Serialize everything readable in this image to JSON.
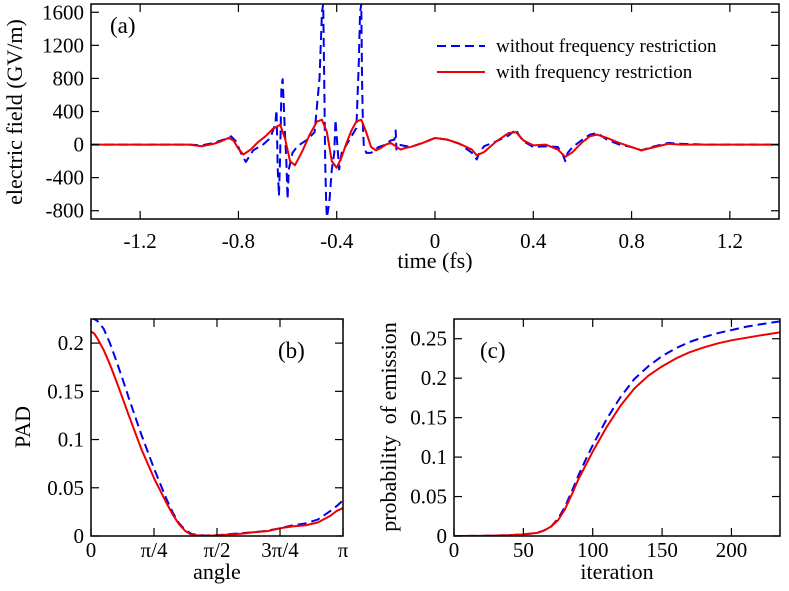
{
  "chart_data": [
    {
      "id": "a",
      "type": "line",
      "panel_label": "(a)",
      "xlabel": "time (fs)",
      "ylabel": "electric field (GV/m)",
      "xlim": [
        -1.4,
        1.4
      ],
      "ylim": [
        -900,
        1700
      ],
      "xticks": [
        -1.2,
        -0.8,
        -0.4,
        0,
        0.4,
        0.8,
        1.2
      ],
      "xtick_labels": [
        "-1.2",
        "-0.8",
        "-0.4",
        "0",
        "0.4",
        "0.8",
        "1.2"
      ],
      "yticks": [
        -800,
        -400,
        0,
        400,
        800,
        1200,
        1600
      ],
      "ytick_labels": [
        "-800",
        "-400",
        "0",
        "400",
        "800",
        "1200",
        "1600"
      ],
      "legend": {
        "position": "top-right"
      },
      "series": [
        {
          "name": "without frequency restriction",
          "color": "#0000ee",
          "dash": "dashed",
          "x": [
            -1.4,
            -1.0,
            -0.95,
            -0.9,
            -0.86,
            -0.83,
            -0.81,
            -0.79,
            -0.77,
            -0.74,
            -0.7,
            -0.67,
            -0.65,
            -0.645,
            -0.64,
            -0.635,
            -0.63,
            -0.625,
            -0.62,
            -0.61,
            -0.605,
            -0.6,
            -0.595,
            -0.58,
            -0.56,
            -0.52,
            -0.49,
            -0.47,
            -0.46,
            -0.455,
            -0.45,
            -0.447,
            -0.443,
            -0.44,
            -0.43,
            -0.42,
            -0.41,
            -0.405,
            -0.4,
            -0.395,
            -0.39,
            -0.38,
            -0.35,
            -0.32,
            -0.31,
            -0.305,
            -0.3,
            -0.297,
            -0.293,
            -0.29,
            -0.28,
            -0.26,
            -0.23,
            -0.2,
            -0.18,
            -0.165,
            -0.16,
            -0.157,
            -0.155,
            -0.15,
            -0.1,
            -0.05,
            0,
            0.05,
            0.1,
            0.15,
            0.17,
            0.18,
            0.2,
            0.25,
            0.3,
            0.32,
            0.33,
            0.34,
            0.36,
            0.4,
            0.45,
            0.5,
            0.52,
            0.53,
            0.54,
            0.56,
            0.6,
            0.63,
            0.66,
            0.7,
            0.75,
            0.8,
            0.84,
            0.88,
            0.95,
            1.0,
            1.1,
            1.2,
            1.4
          ],
          "y": [
            0,
            0,
            -10,
            20,
            60,
            100,
            40,
            -100,
            -210,
            -70,
            0,
            80,
            250,
            420,
            -300,
            -620,
            -100,
            700,
            790,
            100,
            -200,
            -660,
            -300,
            -100,
            -20,
            60,
            150,
            800,
            1600,
            1700,
            600,
            -200,
            -700,
            -880,
            -700,
            -300,
            -100,
            300,
            100,
            -100,
            -300,
            -100,
            50,
            200,
            1000,
            1600,
            1700,
            800,
            200,
            0,
            -100,
            -100,
            -30,
            0,
            50,
            60,
            170,
            -60,
            -10,
            0,
            -30,
            20,
            80,
            60,
            10,
            -100,
            -180,
            -100,
            -20,
            40,
            110,
            160,
            185,
            120,
            40,
            -30,
            -20,
            -30,
            -120,
            -200,
            -100,
            -30,
            60,
            120,
            140,
            60,
            0,
            -30,
            -70,
            -30,
            20,
            10,
            0,
            0,
            0
          ]
        },
        {
          "name": "with frequency restriction",
          "color": "#ee0000",
          "dash": "solid",
          "x": [
            -1.4,
            -1.0,
            -0.95,
            -0.9,
            -0.87,
            -0.84,
            -0.82,
            -0.8,
            -0.78,
            -0.75,
            -0.72,
            -0.69,
            -0.66,
            -0.63,
            -0.61,
            -0.59,
            -0.57,
            -0.54,
            -0.51,
            -0.48,
            -0.46,
            -0.44,
            -0.42,
            -0.4,
            -0.38,
            -0.36,
            -0.34,
            -0.32,
            -0.3,
            -0.28,
            -0.26,
            -0.24,
            -0.22,
            -0.2,
            -0.18,
            -0.16,
            -0.14,
            -0.12,
            -0.1,
            -0.05,
            0,
            0.05,
            0.1,
            0.15,
            0.17,
            0.2,
            0.25,
            0.3,
            0.33,
            0.36,
            0.4,
            0.45,
            0.5,
            0.53,
            0.56,
            0.6,
            0.63,
            0.66,
            0.7,
            0.75,
            0.8,
            0.84,
            0.88,
            0.95,
            1.0,
            1.1,
            1.2,
            1.4
          ],
          "y": [
            0,
            0,
            -20,
            10,
            40,
            80,
            50,
            -50,
            -120,
            -60,
            30,
            100,
            190,
            240,
            70,
            -200,
            -250,
            -80,
            120,
            280,
            300,
            150,
            -200,
            -280,
            -150,
            20,
            170,
            280,
            300,
            150,
            -30,
            -70,
            -40,
            0,
            20,
            -20,
            -60,
            -40,
            -30,
            20,
            80,
            60,
            10,
            -60,
            -130,
            -90,
            40,
            140,
            150,
            50,
            -10,
            0,
            -60,
            -150,
            -90,
            30,
            100,
            120,
            80,
            20,
            -30,
            -70,
            -40,
            10,
            0,
            0,
            0,
            0
          ]
        }
      ]
    },
    {
      "id": "b",
      "type": "line",
      "panel_label": "(b)",
      "xlabel": "angle",
      "ylabel": "PAD",
      "xlim": [
        0,
        4
      ],
      "ylim": [
        0,
        0.225
      ],
      "xticks": [
        0,
        1,
        2,
        3,
        4
      ],
      "xtick_labels": [
        "0",
        "π/4",
        "π/2",
        "3π/4",
        "π"
      ],
      "yticks": [
        0,
        0.05,
        0.1,
        0.15,
        0.2
      ],
      "ytick_labels": [
        "0",
        "0.05",
        "0.1",
        "0.15",
        "0.2"
      ],
      "series": [
        {
          "name": "without frequency restriction",
          "color": "#0000ee",
          "dash": "dashed",
          "x": [
            0,
            0.1,
            0.2,
            0.3,
            0.4,
            0.5,
            0.6,
            0.8,
            1.0,
            1.2,
            1.3,
            1.4,
            1.5,
            1.6,
            1.8,
            2.0,
            2.2,
            2.4,
            2.6,
            2.8,
            3.0,
            3.2,
            3.4,
            3.6,
            3.8,
            3.9,
            4.0
          ],
          "y": [
            0.227,
            0.223,
            0.215,
            0.2,
            0.182,
            0.163,
            0.143,
            0.105,
            0.07,
            0.038,
            0.024,
            0.013,
            0.006,
            0.002,
            0.0005,
            0.0008,
            0.002,
            0.003,
            0.004,
            0.0055,
            0.008,
            0.011,
            0.013,
            0.017,
            0.026,
            0.031,
            0.037
          ]
        },
        {
          "name": "with frequency restriction",
          "color": "#ee0000",
          "dash": "solid",
          "x": [
            0,
            0.05,
            0.1,
            0.2,
            0.3,
            0.4,
            0.5,
            0.6,
            0.8,
            1.0,
            1.2,
            1.3,
            1.4,
            1.5,
            1.6,
            1.8,
            2.0,
            2.2,
            2.4,
            2.6,
            2.8,
            3.0,
            3.2,
            3.4,
            3.6,
            3.8,
            3.9,
            4.0
          ],
          "y": [
            0.212,
            0.21,
            0.205,
            0.193,
            0.178,
            0.161,
            0.143,
            0.125,
            0.09,
            0.06,
            0.034,
            0.022,
            0.012,
            0.005,
            0.001,
            0.0003,
            0.0007,
            0.0015,
            0.0025,
            0.004,
            0.005,
            0.008,
            0.01,
            0.011,
            0.014,
            0.021,
            0.026,
            0.029
          ]
        }
      ]
    },
    {
      "id": "c",
      "type": "line",
      "panel_label": "(c)",
      "xlabel": "iteration",
      "ylabel": "probability  of emission",
      "xlim": [
        0,
        235
      ],
      "ylim": [
        0,
        0.275
      ],
      "xticks": [
        0,
        50,
        100,
        150,
        200
      ],
      "xtick_labels": [
        "0",
        "50",
        "100",
        "150",
        "200"
      ],
      "yticks": [
        0,
        0.05,
        0.1,
        0.15,
        0.2,
        0.25
      ],
      "ytick_labels": [
        "0",
        "0.05",
        "0.1",
        "0.15",
        "0.2",
        "0.25"
      ],
      "series": [
        {
          "name": "without frequency restriction",
          "color": "#0000ee",
          "dash": "dashed",
          "x": [
            0,
            20,
            40,
            50,
            60,
            65,
            70,
            75,
            80,
            85,
            90,
            95,
            100,
            110,
            120,
            130,
            140,
            150,
            160,
            170,
            180,
            190,
            200,
            210,
            220,
            235
          ],
          "y": [
            0,
            0.0002,
            0.001,
            0.002,
            0.004,
            0.007,
            0.012,
            0.022,
            0.037,
            0.057,
            0.078,
            0.097,
            0.115,
            0.148,
            0.176,
            0.199,
            0.215,
            0.228,
            0.238,
            0.246,
            0.252,
            0.257,
            0.261,
            0.265,
            0.268,
            0.272
          ]
        },
        {
          "name": "with frequency restriction",
          "color": "#ee0000",
          "dash": "solid",
          "x": [
            0,
            20,
            40,
            50,
            60,
            65,
            70,
            75,
            80,
            85,
            90,
            95,
            100,
            110,
            120,
            130,
            140,
            150,
            160,
            170,
            180,
            190,
            200,
            210,
            220,
            235
          ],
          "y": [
            0,
            0.0002,
            0.001,
            0.002,
            0.004,
            0.007,
            0.012,
            0.02,
            0.034,
            0.053,
            0.073,
            0.09,
            0.107,
            0.138,
            0.165,
            0.187,
            0.203,
            0.215,
            0.225,
            0.233,
            0.239,
            0.244,
            0.248,
            0.251,
            0.254,
            0.258
          ]
        }
      ]
    }
  ]
}
